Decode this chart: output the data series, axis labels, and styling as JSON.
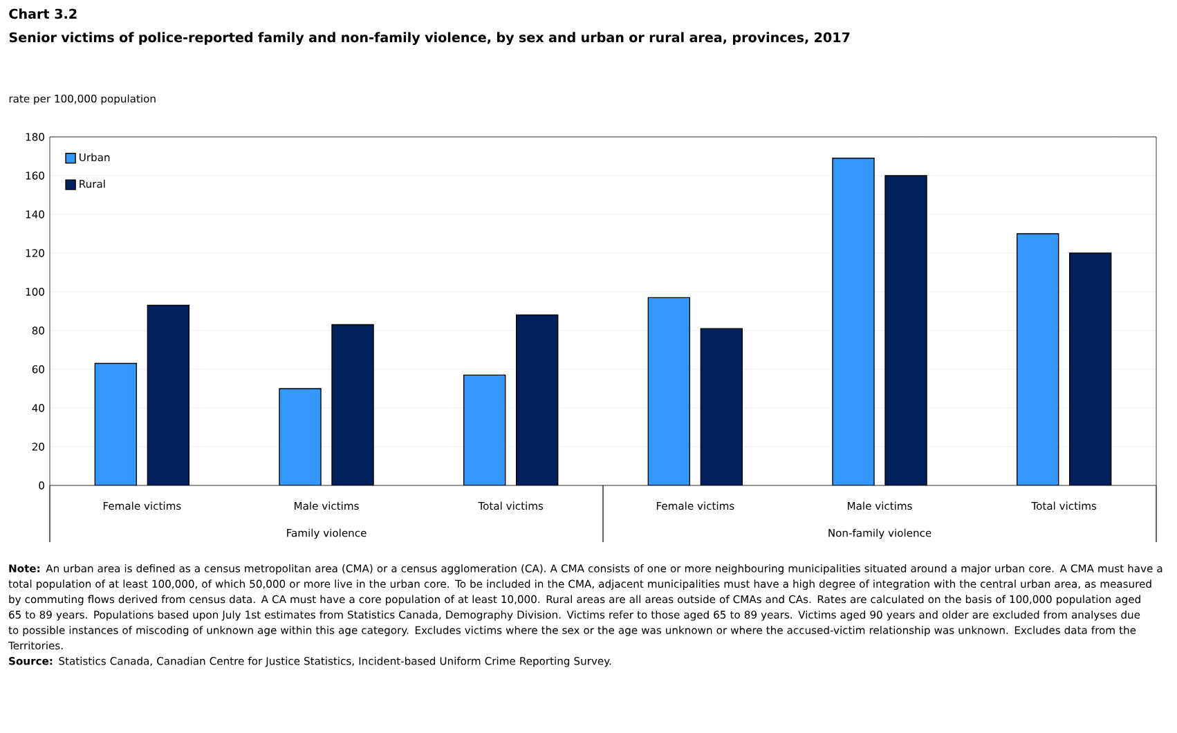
{
  "chart_data": {
    "type": "bar",
    "title": "Chart 3.2",
    "subtitle": "Senior victims of police-reported family and non-family violence, by sex and urban or rural area, provinces, 2017",
    "ylabel": "rate per 100,000 population",
    "categories": [
      "Female victims",
      "Male victims",
      "Total victims",
      "Female victims",
      "Male victims",
      "Total victims"
    ],
    "series": [
      {
        "name": "Urban",
        "color": "#3399ff",
        "values": [
          63,
          50,
          57,
          97,
          169,
          130
        ]
      },
      {
        "name": "Rural",
        "color": "#00215e",
        "values": [
          93,
          83,
          88,
          81,
          160,
          120
        ]
      }
    ],
    "ylim": [
      0,
      180
    ],
    "yticks": [
      0,
      20,
      40,
      60,
      80,
      100,
      120,
      140,
      160,
      180
    ],
    "grid": "y",
    "legend": "top left",
    "annotations": [
      "Family violence",
      "Non-family violence",
      "**Note:** An urban area is defined as a census metropolitan area (CMA) or a census agglomeration (CA). A CMA consists of one or more neighbouring municipalities situated around a major urban core. A CMA must have a total population of at least 100,000, of which 50,000 or more live in the urban core. To be included in the CMA, adjacent municipalities must have a high degree of integration with the central urban area, as measured by commuting flows derived from census data. A CA must have a core population of at least 10,000. Rural areas are all areas outside of CMAs and CAs. Rates are calculated on the basis of 100,000 population aged 65 to 89 years. Populations based upon July 1st estimates from Statistics Canada, Demography Division. Victims refer to those aged 65 to 89 years. Victims aged 90 years and older are excluded from analyses due to possible instances of miscoding of unknown age within this age category. Excludes victims where the sex or the age was unknown or where the accused-victim relationship was unknown. Excludes data from the Territories.",
      "**Source:** Statistics Canada, Canadian Centre for Justice Statistics, Incident-based Uniform Crime Reporting Survey."
    ]
  }
}
